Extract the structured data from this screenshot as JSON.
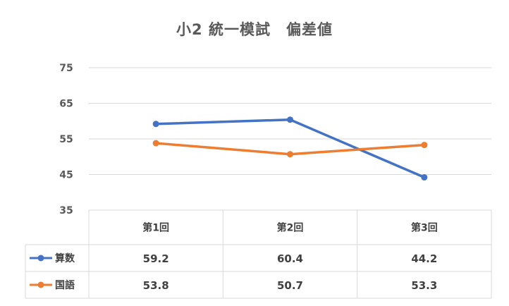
{
  "chart_data": {
    "type": "line",
    "title": "小2 統一模試　偏差値",
    "categories": [
      "第1回",
      "第2回",
      "第3回"
    ],
    "series": [
      {
        "name": "算数",
        "values": [
          59.2,
          60.4,
          44.2
        ],
        "color": "#4472C4"
      },
      {
        "name": "国語",
        "values": [
          53.8,
          50.7,
          53.3
        ],
        "color": "#ED7D31"
      }
    ],
    "ylim": [
      35,
      75
    ],
    "yticks": [
      "75",
      "65",
      "55",
      "45",
      "35"
    ],
    "data_table": true,
    "grid": true
  }
}
